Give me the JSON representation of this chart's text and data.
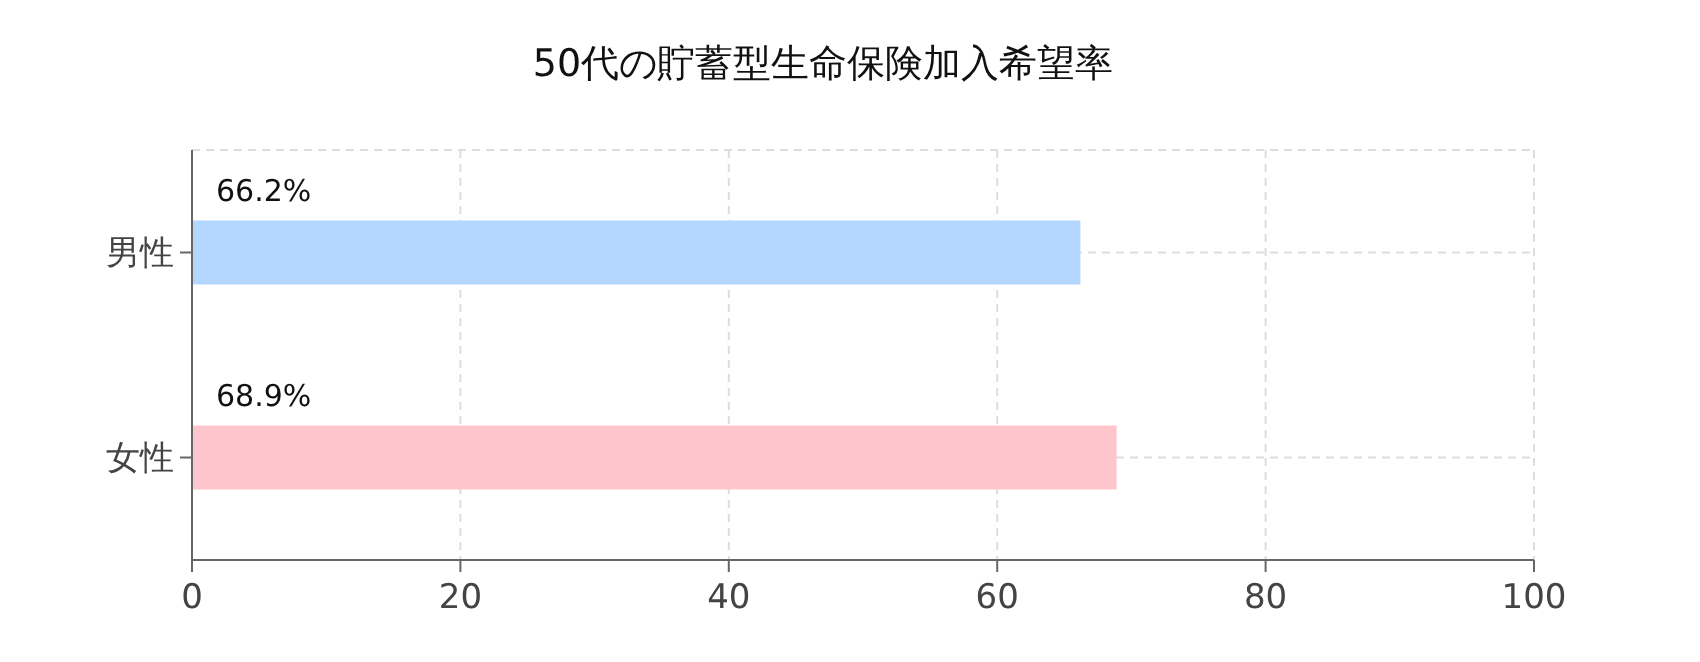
{
  "chart_data": {
    "type": "bar",
    "title": "50代の貯蓄型生命保険加入希望率",
    "orientation": "horizontal",
    "categories": [
      "男性",
      "女性"
    ],
    "values": [
      66.2,
      68.9
    ],
    "colors": [
      "#b3d7ff",
      "#ffc5cc"
    ],
    "value_labels": [
      "66.2%",
      "68.9%"
    ],
    "xlim": [
      0,
      100
    ],
    "xticks": [
      0,
      20,
      40,
      60,
      80,
      100
    ],
    "grid": true
  }
}
